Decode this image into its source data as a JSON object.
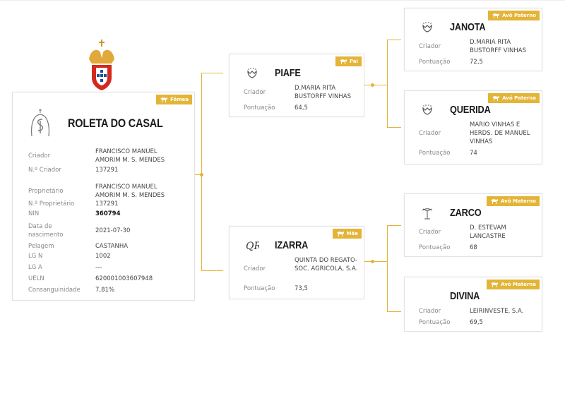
{
  "colors": {
    "accent": "#e4b437",
    "border": "#e2e2e2"
  },
  "main": {
    "badge": "Fêmea",
    "name": "ROLETA DO CASAL",
    "logo_icon": "breeder-brand-icon",
    "fields": [
      {
        "label": "Criador",
        "value": "FRANCISCO MANUEL AMORIM M. S. MENDES"
      },
      {
        "label": "N.º Criador",
        "value": "137291"
      },
      {
        "label": "Proprietário",
        "value": "FRANCISCO MANUEL AMORIM M. S. MENDES"
      },
      {
        "label": "N.º Proprietário",
        "value": "137291"
      },
      {
        "label": "NIN",
        "value": "360794"
      },
      {
        "label": "Data de nascimento",
        "value": "2021-07-30"
      },
      {
        "label": "Pelagem",
        "value": "CASTANHA"
      },
      {
        "label": "LG N",
        "value": "1002"
      },
      {
        "label": "LG A",
        "value": "---"
      },
      {
        "label": "UELN",
        "value": "620001003607948"
      },
      {
        "label": "Consanguinidade",
        "value": "7,81%"
      }
    ]
  },
  "ancestors": {
    "father": {
      "badge": "Pai",
      "name": "PIAFE",
      "breeder_label": "Criador",
      "breeder": "D.MARIA RITA BUSTORFF VINHAS",
      "score_label": "Pontuação",
      "score": "64,5"
    },
    "mother": {
      "badge": "Mãe",
      "name": "IZARRA",
      "breeder_label": "Criador",
      "breeder": "QUINTA DO REGATO-SOC. AGRICOLA, S.A.",
      "score_label": "Pontuação",
      "score": "73,5"
    },
    "pgf": {
      "badge": "Avô Paterno",
      "name": "JANOTA",
      "breeder_label": "Criador",
      "breeder": "D.MARIA RITA BUSTORFF VINHAS",
      "score_label": "Pontuação",
      "score": "72,5"
    },
    "pgm": {
      "badge": "Avó Paterna",
      "name": "QUERIDA",
      "breeder_label": "Criador",
      "breeder": "MARIO VINHAS E HERDS. DE MANUEL VINHAS",
      "score_label": "Pontuação",
      "score": "74"
    },
    "mgf": {
      "badge": "Avô Materno",
      "name": "ZARCO",
      "breeder_label": "Criador",
      "breeder": "D. ESTEVAM LANCASTRE",
      "score_label": "Pontuação",
      "score": "68"
    },
    "mgm": {
      "badge": "Avó Materna",
      "name": "DIVINA",
      "breeder_label": "Criador",
      "breeder": "LEIRINVESTE, S.A.",
      "score_label": "Pontuação",
      "score": "69,5"
    }
  }
}
